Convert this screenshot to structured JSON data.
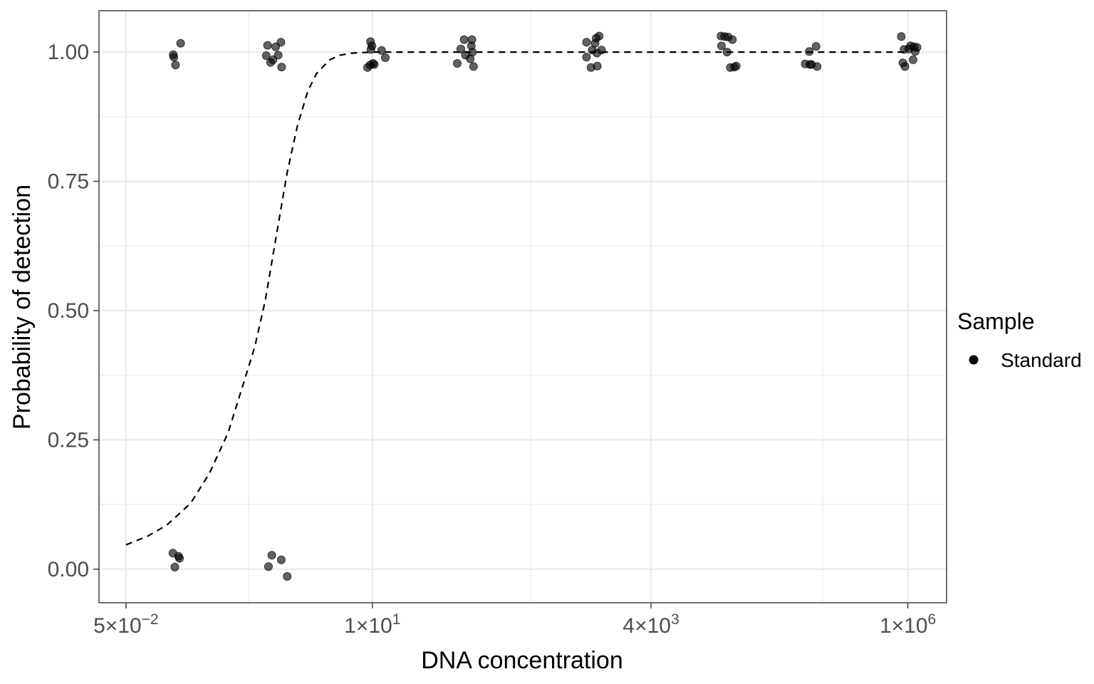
{
  "chart_data": {
    "type": "scatter",
    "title": "",
    "xlabel": "DNA concentration",
    "ylabel": "Probability of detection",
    "x_scale": "log10",
    "xlim": [
      0.028,
      2300000
    ],
    "ylim": [
      -0.065,
      1.08
    ],
    "grid": true,
    "x_ticks": [
      {
        "value": 0.05,
        "mant": "5",
        "exp": "−2"
      },
      {
        "value": 10,
        "mant": "1",
        "exp": "1"
      },
      {
        "value": 4000,
        "mant": "4",
        "exp": "3"
      },
      {
        "value": 1000000,
        "mant": "1",
        "exp": "6"
      }
    ],
    "x_minor_ticks": [
      0.7,
      300,
      160000
    ],
    "y_ticks": [
      {
        "value": 0,
        "label": "0.00"
      },
      {
        "value": 0.25,
        "label": "0.25"
      },
      {
        "value": 0.5,
        "label": "0.50"
      },
      {
        "value": 0.75,
        "label": "0.75"
      },
      {
        "value": 1,
        "label": "1.00"
      }
    ],
    "y_minor_ticks": [
      0.125,
      0.375,
      0.625,
      0.875
    ],
    "legend": {
      "title": "Sample",
      "placement": "right",
      "entries": [
        {
          "label": "Standard",
          "color": "#000000"
        }
      ]
    },
    "point_color": "#000000",
    "point_opacity": 0.62,
    "series": [
      {
        "name": "Standard",
        "points": [
          {
            "x": 0.138,
            "y": 0.995
          },
          {
            "x": 0.145,
            "y": 0.975
          },
          {
            "x": 0.162,
            "y": 1.017
          },
          {
            "x": 0.14,
            "y": 0.99
          },
          {
            "x": 0.137,
            "y": 0.031
          },
          {
            "x": 0.143,
            "y": 0.004
          },
          {
            "x": 0.158,
            "y": 0.021
          },
          {
            "x": 0.155,
            "y": 0.025
          },
          {
            "x": 1.05,
            "y": 1.013
          },
          {
            "x": 1.12,
            "y": 0.98
          },
          {
            "x": 1.25,
            "y": 1.01
          },
          {
            "x": 1.4,
            "y": 1.019
          },
          {
            "x": 1.32,
            "y": 0.994
          },
          {
            "x": 1.18,
            "y": 0.985
          },
          {
            "x": 1.42,
            "y": 0.971
          },
          {
            "x": 1.02,
            "y": 0.993
          },
          {
            "x": 1.07,
            "y": 0.005
          },
          {
            "x": 1.15,
            "y": 0.027
          },
          {
            "x": 1.41,
            "y": 0.018
          },
          {
            "x": 1.6,
            "y": -0.014
          },
          {
            "x": 9.6,
            "y": 1.02
          },
          {
            "x": 9.9,
            "y": 1.012
          },
          {
            "x": 9.7,
            "y": 1.005
          },
          {
            "x": 9.0,
            "y": 0.97
          },
          {
            "x": 10.1,
            "y": 0.978
          },
          {
            "x": 9.5,
            "y": 0.975
          },
          {
            "x": 10.4,
            "y": 0.976
          },
          {
            "x": 12.2,
            "y": 1.003
          },
          {
            "x": 13.2,
            "y": 0.989
          },
          {
            "x": 72,
            "y": 1.024
          },
          {
            "x": 85,
            "y": 1.024
          },
          {
            "x": 67,
            "y": 1.006
          },
          {
            "x": 74,
            "y": 0.994
          },
          {
            "x": 84,
            "y": 1.012
          },
          {
            "x": 86,
            "y": 1.0
          },
          {
            "x": 82,
            "y": 0.987
          },
          {
            "x": 62,
            "y": 0.978
          },
          {
            "x": 88,
            "y": 0.972
          },
          {
            "x": 1000,
            "y": 1.019
          },
          {
            "x": 1130,
            "y": 1.004
          },
          {
            "x": 1200,
            "y": 1.017
          },
          {
            "x": 1230,
            "y": 1.027
          },
          {
            "x": 1310,
            "y": 1.031
          },
          {
            "x": 1380,
            "y": 1.004
          },
          {
            "x": 1250,
            "y": 0.998
          },
          {
            "x": 1000,
            "y": 0.99
          },
          {
            "x": 1100,
            "y": 0.97
          },
          {
            "x": 1260,
            "y": 0.973
          },
          {
            "x": 18000,
            "y": 1.031
          },
          {
            "x": 19500,
            "y": 1.03
          },
          {
            "x": 21000,
            "y": 1.029
          },
          {
            "x": 23000,
            "y": 1.024
          },
          {
            "x": 18200,
            "y": 1.012
          },
          {
            "x": 20500,
            "y": 1.0
          },
          {
            "x": 22000,
            "y": 0.97
          },
          {
            "x": 25000,
            "y": 0.973
          },
          {
            "x": 24000,
            "y": 0.971
          },
          {
            "x": 120000,
            "y": 1.001
          },
          {
            "x": 139000,
            "y": 1.011
          },
          {
            "x": 110000,
            "y": 0.977
          },
          {
            "x": 122000,
            "y": 0.976
          },
          {
            "x": 126000,
            "y": 0.976
          },
          {
            "x": 142000,
            "y": 0.972
          },
          {
            "x": 870000,
            "y": 1.03
          },
          {
            "x": 920000,
            "y": 1.005
          },
          {
            "x": 1060000,
            "y": 1.012
          },
          {
            "x": 1140000,
            "y": 1.01
          },
          {
            "x": 1170000,
            "y": 1.001
          },
          {
            "x": 1220000,
            "y": 1.009
          },
          {
            "x": 1020000,
            "y": 1.006
          },
          {
            "x": 900000,
            "y": 0.979
          },
          {
            "x": 940000,
            "y": 0.972
          },
          {
            "x": 1120000,
            "y": 0.985
          }
        ]
      },
      {
        "name": "",
        "type": "line",
        "style": "dashed",
        "x": [
          0.05,
          0.08,
          0.12,
          0.2,
          0.3,
          0.45,
          0.6,
          0.8,
          1.0,
          1.3,
          1.6,
          2.0,
          2.5,
          3.0,
          4.0,
          5.0,
          6.5,
          8.0,
          10,
          15,
          50,
          1000,
          100000,
          1000000
        ],
        "y": [
          0.047,
          0.064,
          0.085,
          0.127,
          0.185,
          0.264,
          0.347,
          0.431,
          0.52,
          0.658,
          0.767,
          0.858,
          0.925,
          0.958,
          0.985,
          0.994,
          0.998,
          0.999,
          1.0,
          1.0,
          1.0,
          1.0,
          1.0,
          1.0
        ]
      }
    ]
  }
}
